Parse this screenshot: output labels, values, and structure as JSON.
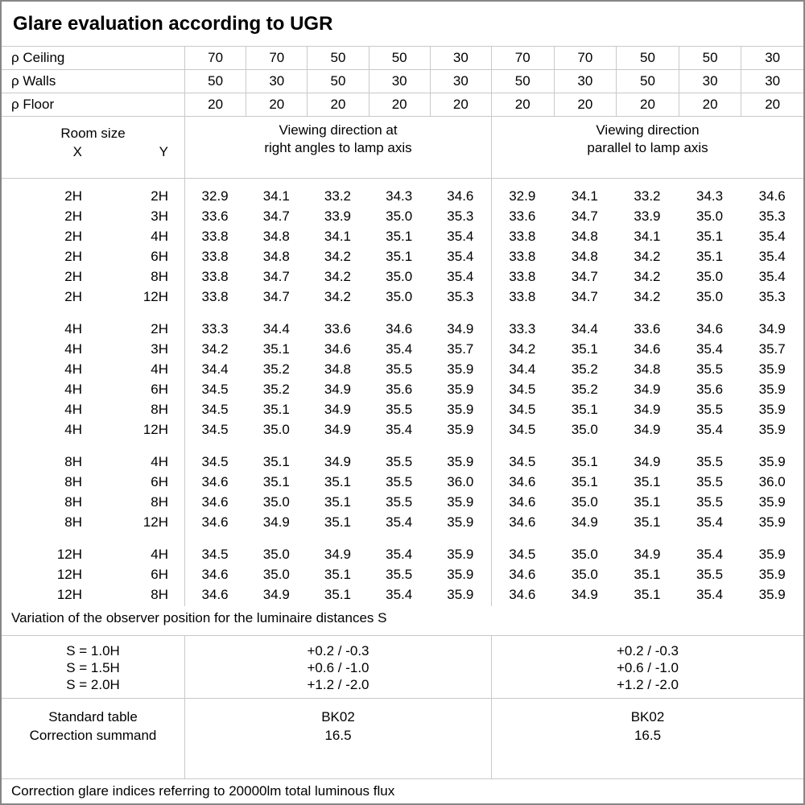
{
  "title": "Glare evaluation according to UGR",
  "colors": {
    "background": "#ffffff",
    "text": "#000000",
    "grid_line": "#c9c9c9",
    "outer_border": "#868686"
  },
  "reflectance_rows": [
    {
      "label": "ρ Ceiling",
      "values": [
        "70",
        "70",
        "50",
        "50",
        "30",
        "70",
        "70",
        "50",
        "50",
        "30"
      ]
    },
    {
      "label": "ρ Walls",
      "values": [
        "50",
        "30",
        "50",
        "30",
        "30",
        "50",
        "30",
        "50",
        "30",
        "30"
      ]
    },
    {
      "label": "ρ Floor",
      "values": [
        "20",
        "20",
        "20",
        "20",
        "20",
        "20",
        "20",
        "20",
        "20",
        "20"
      ]
    }
  ],
  "header": {
    "room_size_label": "Room size",
    "x_label": "X",
    "y_label": "Y",
    "direction_left": [
      "Viewing direction at",
      "right angles to lamp axis"
    ],
    "direction_right": [
      "Viewing direction",
      "parallel to lamp axis"
    ]
  },
  "ugr_groups": [
    {
      "rows": [
        {
          "x": "2H",
          "y": "2H",
          "right_angles": [
            "32.9",
            "34.1",
            "33.2",
            "34.3",
            "34.6"
          ],
          "parallel": [
            "32.9",
            "34.1",
            "33.2",
            "34.3",
            "34.6"
          ]
        },
        {
          "x": "2H",
          "y": "3H",
          "right_angles": [
            "33.6",
            "34.7",
            "33.9",
            "35.0",
            "35.3"
          ],
          "parallel": [
            "33.6",
            "34.7",
            "33.9",
            "35.0",
            "35.3"
          ]
        },
        {
          "x": "2H",
          "y": "4H",
          "right_angles": [
            "33.8",
            "34.8",
            "34.1",
            "35.1",
            "35.4"
          ],
          "parallel": [
            "33.8",
            "34.8",
            "34.1",
            "35.1",
            "35.4"
          ]
        },
        {
          "x": "2H",
          "y": "6H",
          "right_angles": [
            "33.8",
            "34.8",
            "34.2",
            "35.1",
            "35.4"
          ],
          "parallel": [
            "33.8",
            "34.8",
            "34.2",
            "35.1",
            "35.4"
          ]
        },
        {
          "x": "2H",
          "y": "8H",
          "right_angles": [
            "33.8",
            "34.7",
            "34.2",
            "35.0",
            "35.4"
          ],
          "parallel": [
            "33.8",
            "34.7",
            "34.2",
            "35.0",
            "35.4"
          ]
        },
        {
          "x": "2H",
          "y": "12H",
          "right_angles": [
            "33.8",
            "34.7",
            "34.2",
            "35.0",
            "35.3"
          ],
          "parallel": [
            "33.8",
            "34.7",
            "34.2",
            "35.0",
            "35.3"
          ]
        }
      ]
    },
    {
      "rows": [
        {
          "x": "4H",
          "y": "2H",
          "right_angles": [
            "33.3",
            "34.4",
            "33.6",
            "34.6",
            "34.9"
          ],
          "parallel": [
            "33.3",
            "34.4",
            "33.6",
            "34.6",
            "34.9"
          ]
        },
        {
          "x": "4H",
          "y": "3H",
          "right_angles": [
            "34.2",
            "35.1",
            "34.6",
            "35.4",
            "35.7"
          ],
          "parallel": [
            "34.2",
            "35.1",
            "34.6",
            "35.4",
            "35.7"
          ]
        },
        {
          "x": "4H",
          "y": "4H",
          "right_angles": [
            "34.4",
            "35.2",
            "34.8",
            "35.5",
            "35.9"
          ],
          "parallel": [
            "34.4",
            "35.2",
            "34.8",
            "35.5",
            "35.9"
          ]
        },
        {
          "x": "4H",
          "y": "6H",
          "right_angles": [
            "34.5",
            "35.2",
            "34.9",
            "35.6",
            "35.9"
          ],
          "parallel": [
            "34.5",
            "35.2",
            "34.9",
            "35.6",
            "35.9"
          ]
        },
        {
          "x": "4H",
          "y": "8H",
          "right_angles": [
            "34.5",
            "35.1",
            "34.9",
            "35.5",
            "35.9"
          ],
          "parallel": [
            "34.5",
            "35.1",
            "34.9",
            "35.5",
            "35.9"
          ]
        },
        {
          "x": "4H",
          "y": "12H",
          "right_angles": [
            "34.5",
            "35.0",
            "34.9",
            "35.4",
            "35.9"
          ],
          "parallel": [
            "34.5",
            "35.0",
            "34.9",
            "35.4",
            "35.9"
          ]
        }
      ]
    },
    {
      "rows": [
        {
          "x": "8H",
          "y": "4H",
          "right_angles": [
            "34.5",
            "35.1",
            "34.9",
            "35.5",
            "35.9"
          ],
          "parallel": [
            "34.5",
            "35.1",
            "34.9",
            "35.5",
            "35.9"
          ]
        },
        {
          "x": "8H",
          "y": "6H",
          "right_angles": [
            "34.6",
            "35.1",
            "35.1",
            "35.5",
            "36.0"
          ],
          "parallel": [
            "34.6",
            "35.1",
            "35.1",
            "35.5",
            "36.0"
          ]
        },
        {
          "x": "8H",
          "y": "8H",
          "right_angles": [
            "34.6",
            "35.0",
            "35.1",
            "35.5",
            "35.9"
          ],
          "parallel": [
            "34.6",
            "35.0",
            "35.1",
            "35.5",
            "35.9"
          ]
        },
        {
          "x": "8H",
          "y": "12H",
          "right_angles": [
            "34.6",
            "34.9",
            "35.1",
            "35.4",
            "35.9"
          ],
          "parallel": [
            "34.6",
            "34.9",
            "35.1",
            "35.4",
            "35.9"
          ]
        }
      ]
    },
    {
      "rows": [
        {
          "x": "12H",
          "y": "4H",
          "right_angles": [
            "34.5",
            "35.0",
            "34.9",
            "35.4",
            "35.9"
          ],
          "parallel": [
            "34.5",
            "35.0",
            "34.9",
            "35.4",
            "35.9"
          ]
        },
        {
          "x": "12H",
          "y": "6H",
          "right_angles": [
            "34.6",
            "35.0",
            "35.1",
            "35.5",
            "35.9"
          ],
          "parallel": [
            "34.6",
            "35.0",
            "35.1",
            "35.5",
            "35.9"
          ]
        },
        {
          "x": "12H",
          "y": "8H",
          "right_angles": [
            "34.6",
            "34.9",
            "35.1",
            "35.4",
            "35.9"
          ],
          "parallel": [
            "34.6",
            "34.9",
            "35.1",
            "35.4",
            "35.9"
          ]
        }
      ]
    }
  ],
  "variation_note": "Variation of the observer position for the luminaire distances S",
  "observer_variation": [
    {
      "label": "S = 1.0H",
      "right_angles": "+0.2 / -0.3",
      "parallel": "+0.2 / -0.3"
    },
    {
      "label": "S = 1.5H",
      "right_angles": "+0.6 / -1.0",
      "parallel": "+0.6 / -1.0"
    },
    {
      "label": "S = 2.0H",
      "right_angles": "+1.2 / -2.0",
      "parallel": "+1.2 / -2.0"
    }
  ],
  "standard_block": {
    "rows": [
      {
        "label": "Standard table",
        "right_angles": "BK02",
        "parallel": "BK02"
      },
      {
        "label": "Correction summand",
        "right_angles": "16.5",
        "parallel": "16.5"
      }
    ]
  },
  "footer_note": "Correction glare indices referring to 20000lm total luminous flux"
}
